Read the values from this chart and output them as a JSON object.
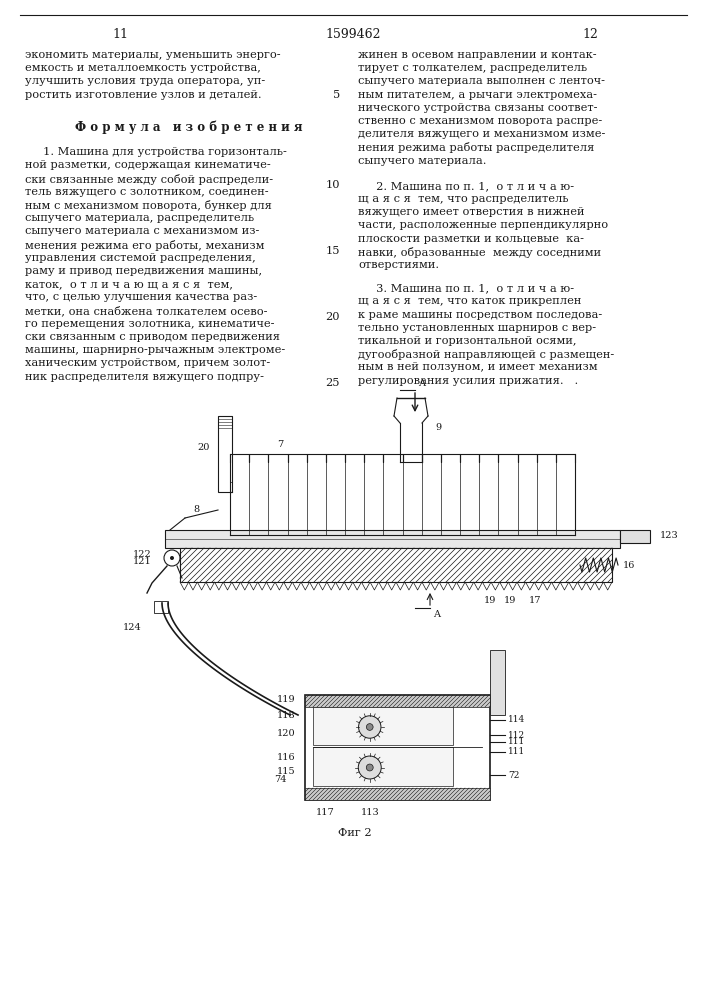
{
  "page_numbers": [
    "11",
    "1599462",
    "12"
  ],
  "left_col_lines": [
    "экономить материалы, уменьшить энерго-",
    "емкость и металлоемкость устройства,",
    "улучшить условия труда оператора, уп-",
    "ростить изготовление узлов и деталей."
  ],
  "right_col_lines": [
    "жинен в осевом направлении и контак-",
    "тирует с толкателем, распределитель",
    "сыпучего материала выполнен с ленточ-",
    "ным питателем, а рычаги электромеха-",
    "нического устройства связаны соответ-",
    "ственно с механизмом поворота распре-",
    "делителя вяжущего и механизмом изме-",
    "нения режима работы распределителя",
    "сыпучего материала."
  ],
  "formula_header": "Ф о р м у л а   и з о б р е т е н и я",
  "claim1_lines": [
    "     1. Машина для устройства горизонталь-",
    "ной разметки, содержащая кинематиче-",
    "ски связанные между собой распредели-",
    "тель вяжущего с золотником, соединен-",
    "ным с механизмом поворота, бункер для",
    "сыпучего материала, распределитель",
    "сыпучего материала с механизмом из-",
    "менения режима его работы, механизм",
    "управления системой распределения,",
    "раму и привод передвижения машины,",
    "каток,  о т л и ч а ю щ а я с я  тем,",
    "что, с целью улучшения качества раз-",
    "метки, она снабжена толкателем осево-",
    "го перемещения золотника, кинематиче-",
    "ски связанным с приводом передвижения",
    "машины, шарнирно-рычажным электроме-",
    "ханическим устройством, причем золот-",
    "ник распределителя вяжущего подпру-"
  ],
  "claim2_lines": [
    "     2. Машина по п. 1,  о т л и ч а ю-",
    "щ а я с я  тем, что распределитель",
    "вяжущего имеет отверстия в нижней",
    "части, расположенные перпендикулярно",
    "плоскости разметки и кольцевые  ка-",
    "навки, образованные  между соседними",
    "отверстиями."
  ],
  "claim3_lines": [
    "     3. Машина по п. 1,  о т л и ч а ю-",
    "щ а я с я  тем, что каток прикреплен",
    "к раме машины посредством последова-",
    "тельно установленных шарниров с вер-",
    "тикальной и горизонтальной осями,",
    "дугообразной направляющей с размещен-",
    "ным в ней ползуном, и имеет механизм",
    "регулирования усилия прижатия.   ."
  ],
  "fig_label": "Фиг 2",
  "bg_color": "#ffffff",
  "fg_color": "#1a1a1a",
  "line_numbers": [
    "5",
    "10",
    "15",
    "20",
    "25"
  ]
}
